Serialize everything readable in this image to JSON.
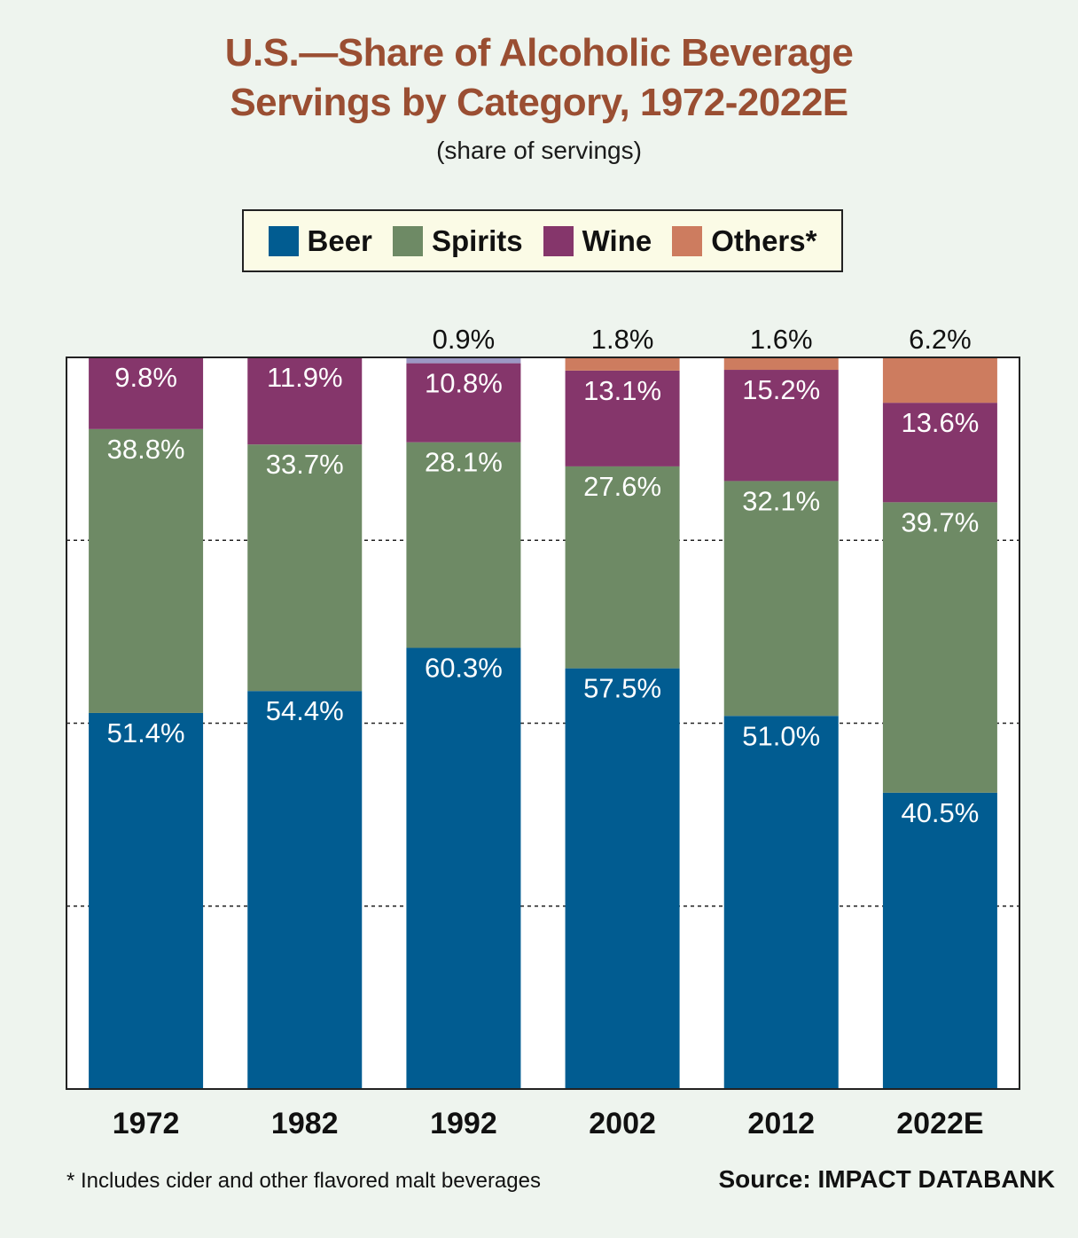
{
  "header": {
    "title_line_1": "U.S.—Share of Alcoholic Beverage",
    "title_line_2": "Servings by Category, 1972-2022E",
    "subtitle": "(share of servings)"
  },
  "legend": [
    {
      "label": "Beer",
      "color": "#015c91"
    },
    {
      "label": "Spirits",
      "color": "#6e8a65"
    },
    {
      "label": "Wine",
      "color": "#85366b"
    },
    {
      "label": "Others*",
      "color": "#cd7c5f"
    }
  ],
  "footer": {
    "footnote": "* Includes cider and other flavored malt beverages",
    "source": "Source: IMPACT DATABANK"
  },
  "chart_data": {
    "type": "bar",
    "stacked": true,
    "title": "U.S.—Share of Alcoholic Beverage Servings by Category, 1972-2022E",
    "subtitle": "(share of servings)",
    "categories": [
      "1972",
      "1982",
      "1992",
      "2002",
      "2012",
      "2022E"
    ],
    "ylim": [
      0,
      100
    ],
    "grid": true,
    "legend_position": "top",
    "series": [
      {
        "name": "Beer",
        "color": "#015c91",
        "values": [
          51.4,
          54.4,
          60.3,
          57.5,
          51.0,
          40.5
        ],
        "labels": [
          "51.4%",
          "54.4%",
          "60.3%",
          "57.5%",
          "51.0%",
          "40.5%"
        ]
      },
      {
        "name": "Spirits",
        "color": "#6e8a65",
        "values": [
          38.8,
          33.7,
          28.1,
          27.6,
          32.1,
          39.7
        ],
        "labels": [
          "38.8%",
          "33.7%",
          "28.1%",
          "27.6%",
          "32.1%",
          "39.7%"
        ]
      },
      {
        "name": "Wine",
        "color": "#85366b",
        "values": [
          9.8,
          11.9,
          10.8,
          13.1,
          15.2,
          13.6
        ],
        "labels": [
          "9.8%",
          "11.9%",
          "10.8%",
          "13.1%",
          "15.2%",
          "13.6%"
        ]
      },
      {
        "name": "Others*",
        "color": "#cd7c5f",
        "values": [
          0,
          0,
          0.9,
          1.8,
          1.6,
          6.2
        ],
        "labels": [
          "",
          "",
          "0.9%",
          "1.8%",
          "1.6%",
          "6.2%"
        ],
        "segment_colors": [
          null,
          null,
          "#9c98c4",
          null,
          null,
          null
        ]
      }
    ]
  }
}
